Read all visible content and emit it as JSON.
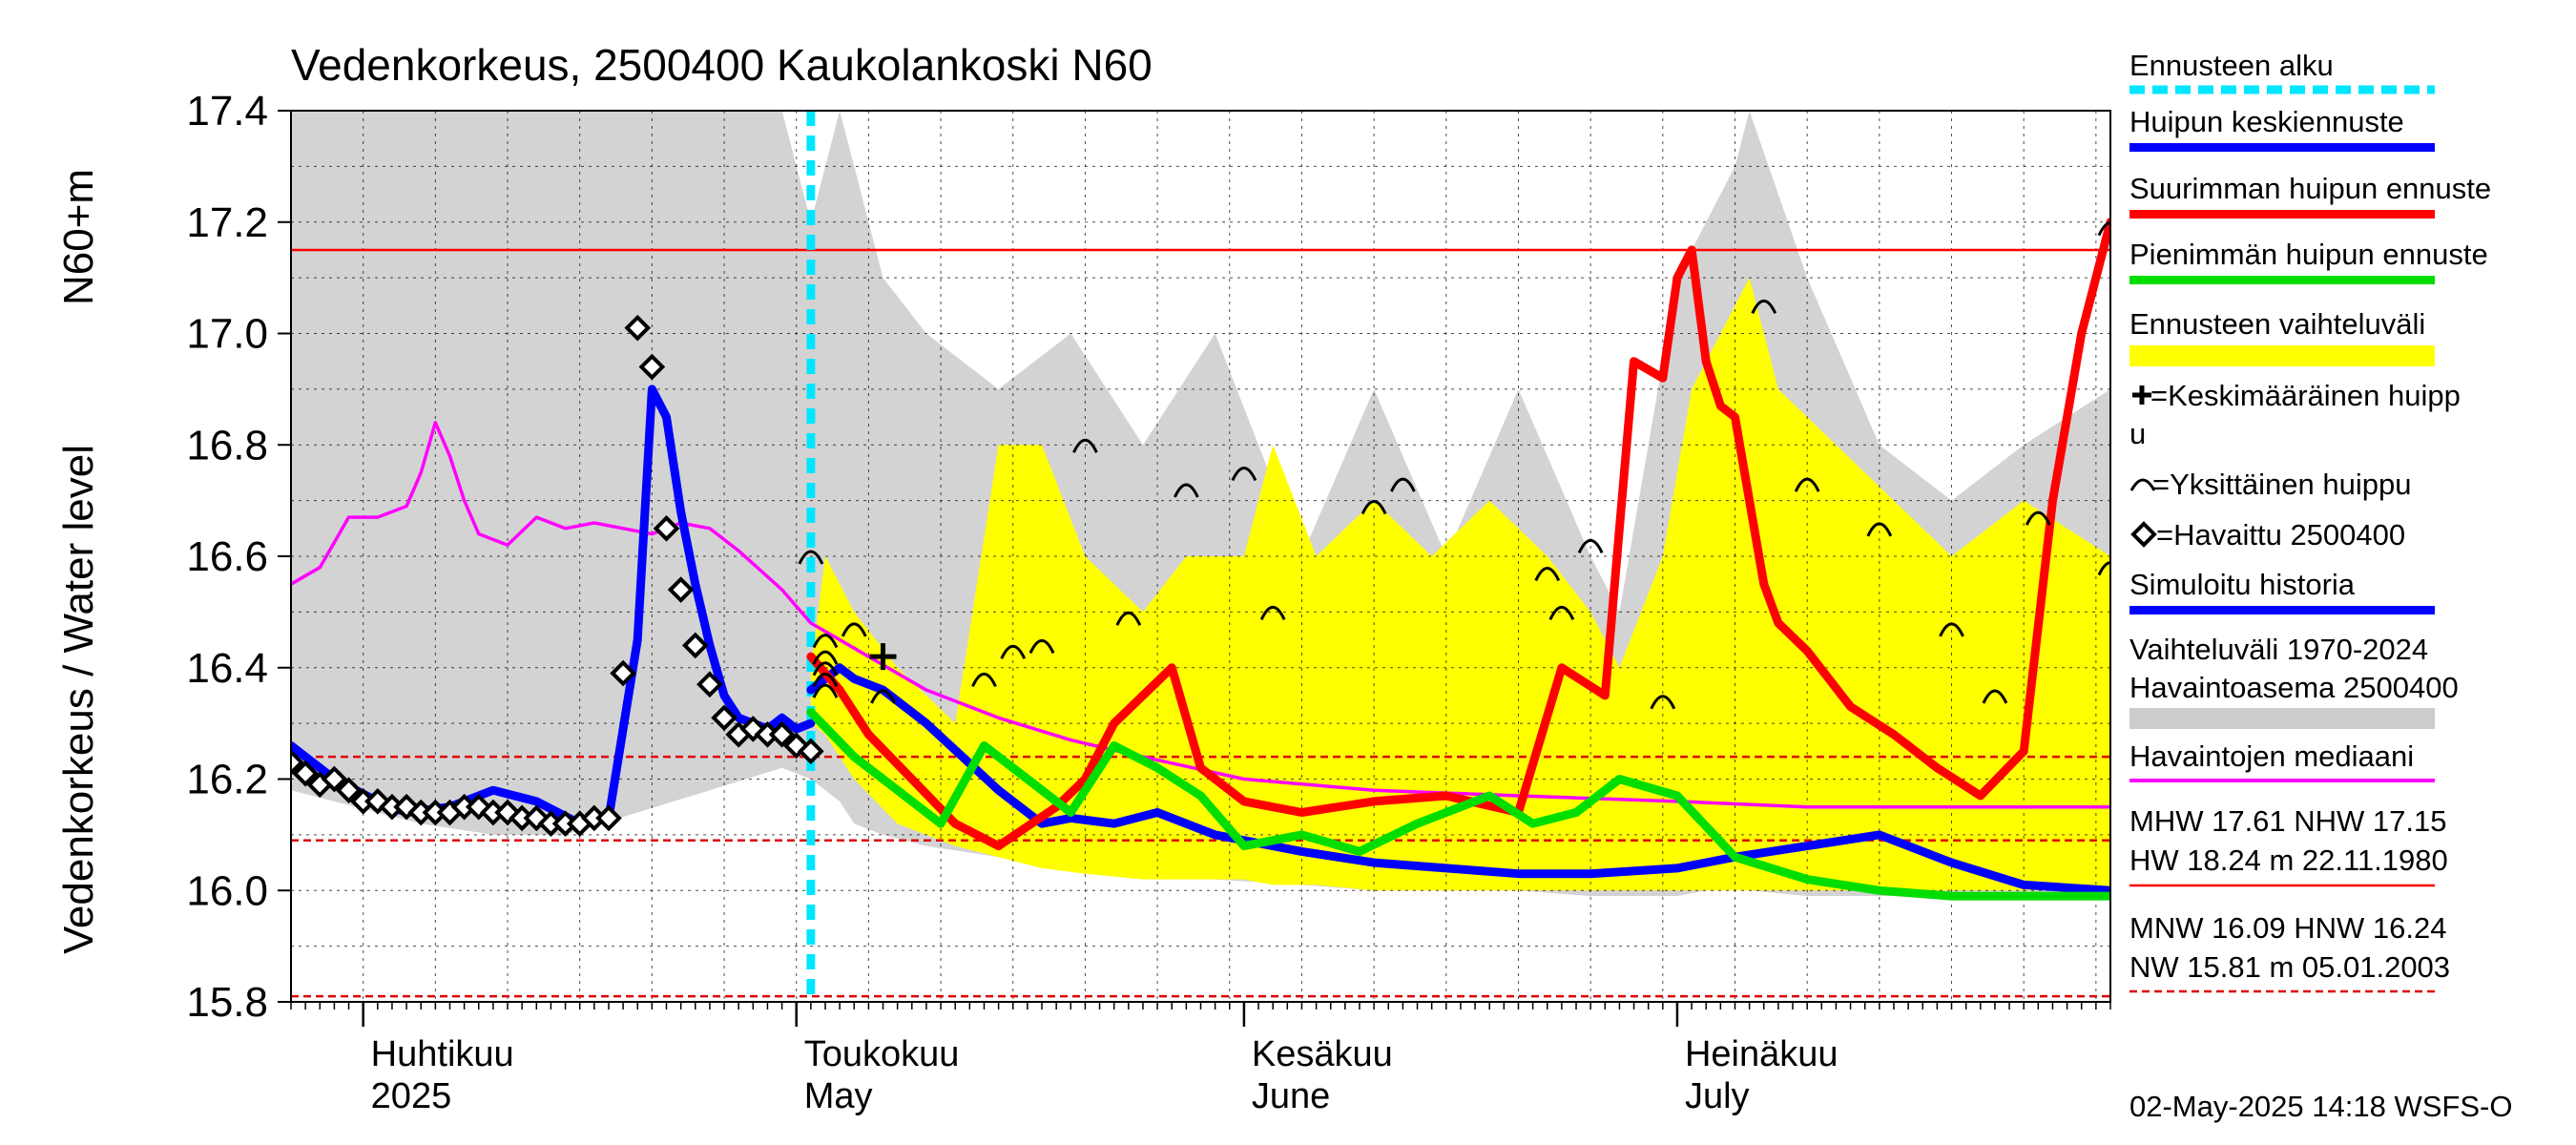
{
  "chart_data": {
    "type": "line",
    "title": "Vedenkorkeus, 2500400 Kaukolankoski N60",
    "ylabel": "Vedenkorkeus / Water level",
    "yunit": "N60+m",
    "ylim": [
      15.8,
      17.4
    ],
    "y_ticks": [
      "15.8",
      "16.0",
      "16.2",
      "16.4",
      "16.6",
      "16.8",
      "17.0",
      "17.2",
      "17.4"
    ],
    "xlim": [
      "2025-03-27",
      "2025-07-31"
    ],
    "grid": true,
    "legend_placement": "right",
    "month_labels": [
      {
        "date": "2025-04-01",
        "fi": "Huhtikuu",
        "en": "2025"
      },
      {
        "date": "2025-05-01",
        "fi": "Toukokuu",
        "en": "May"
      },
      {
        "date": "2025-06-01",
        "fi": "Kesäkuu",
        "en": "June"
      },
      {
        "date": "2025-07-01",
        "fi": "Heinäkuu",
        "en": "July"
      }
    ],
    "forecast_start": "2025-05-02",
    "reference_lines": [
      {
        "name": "NHW",
        "value": 17.15,
        "style": "solid",
        "color": "#ff0000"
      },
      {
        "name": "HNW",
        "value": 16.24,
        "style": "dashed",
        "color": "#dd0000"
      },
      {
        "name": "MNW",
        "value": 16.09,
        "style": "dashed",
        "color": "#dd0000"
      },
      {
        "name": "NW",
        "value": 15.81,
        "style": "dashed",
        "color": "#dd0000"
      }
    ],
    "historical_range": {
      "x": [
        "2025-03-27",
        "2025-04-05",
        "2025-04-10",
        "2025-04-15",
        "2025-04-20",
        "2025-04-25",
        "2025-04-30",
        "2025-05-02",
        "2025-05-04",
        "2025-05-05",
        "2025-05-07",
        "2025-05-10",
        "2025-05-15",
        "2025-05-20",
        "2025-05-25",
        "2025-05-30",
        "2025-06-05",
        "2025-06-10",
        "2025-06-15",
        "2025-06-20",
        "2025-06-25",
        "2025-06-27",
        "2025-07-01",
        "2025-07-05",
        "2025-07-06",
        "2025-07-10",
        "2025-07-15",
        "2025-07-20",
        "2025-07-25",
        "2025-07-31"
      ],
      "upper": [
        17.4,
        17.4,
        17.4,
        17.4,
        17.4,
        17.4,
        17.4,
        17.2,
        17.4,
        17.3,
        17.1,
        17.0,
        16.9,
        17.0,
        16.8,
        17.0,
        16.6,
        16.9,
        16.6,
        16.9,
        16.6,
        16.5,
        17.1,
        17.3,
        17.4,
        17.1,
        16.8,
        16.7,
        16.8,
        16.9
      ],
      "lower": [
        16.18,
        16.12,
        16.1,
        16.1,
        16.14,
        16.18,
        16.22,
        16.2,
        16.16,
        16.12,
        16.1,
        16.08,
        16.06,
        16.04,
        16.03,
        16.02,
        16.01,
        16.0,
        16.0,
        16.0,
        15.99,
        15.99,
        15.99,
        16.01,
        16.0,
        15.99,
        15.99,
        15.99,
        15.99,
        15.99
      ]
    },
    "forecast_range": {
      "x": [
        "2025-05-02",
        "2025-05-03",
        "2025-05-05",
        "2025-05-08",
        "2025-05-12",
        "2025-05-15",
        "2025-05-18",
        "2025-05-21",
        "2025-05-25",
        "2025-05-28",
        "2025-06-01",
        "2025-06-03",
        "2025-06-06",
        "2025-06-10",
        "2025-06-14",
        "2025-06-18",
        "2025-06-22",
        "2025-06-25",
        "2025-06-27",
        "2025-06-30",
        "2025-07-02",
        "2025-07-04",
        "2025-07-06",
        "2025-07-08",
        "2025-07-12",
        "2025-07-16",
        "2025-07-20",
        "2025-07-25",
        "2025-07-31"
      ],
      "upper": [
        16.4,
        16.6,
        16.5,
        16.4,
        16.3,
        16.8,
        16.8,
        16.6,
        16.5,
        16.6,
        16.6,
        16.8,
        16.6,
        16.7,
        16.6,
        16.7,
        16.6,
        16.5,
        16.4,
        16.6,
        16.9,
        17.0,
        17.1,
        16.9,
        16.8,
        16.7,
        16.6,
        16.7,
        16.6
      ],
      "lower": [
        16.3,
        16.28,
        16.2,
        16.12,
        16.08,
        16.06,
        16.04,
        16.03,
        16.02,
        16.02,
        16.02,
        16.01,
        16.01,
        16.0,
        16.0,
        16.0,
        16.0,
        16.0,
        16.0,
        16.0,
        16.0,
        16.0,
        16.0,
        16.0,
        16.0,
        16.0,
        16.0,
        16.0,
        16.0
      ]
    },
    "series": [
      {
        "name": "Havaintojen mediaani",
        "color": "#ff00ff",
        "x": [
          "2025-03-27",
          "2025-03-29",
          "2025-03-31",
          "2025-04-02",
          "2025-04-04",
          "2025-04-05",
          "2025-04-06",
          "2025-04-07",
          "2025-04-08",
          "2025-04-09",
          "2025-04-11",
          "2025-04-13",
          "2025-04-15",
          "2025-04-17",
          "2025-04-19",
          "2025-04-21",
          "2025-04-23",
          "2025-04-25",
          "2025-04-27",
          "2025-04-30",
          "2025-05-02",
          "2025-05-06",
          "2025-05-10",
          "2025-05-15",
          "2025-05-20",
          "2025-05-25",
          "2025-06-01",
          "2025-06-10",
          "2025-06-20",
          "2025-07-01",
          "2025-07-10",
          "2025-07-20",
          "2025-07-31"
        ],
        "values": [
          16.55,
          16.58,
          16.67,
          16.67,
          16.69,
          16.75,
          16.84,
          16.78,
          16.7,
          16.64,
          16.62,
          16.67,
          16.65,
          16.66,
          16.65,
          16.64,
          16.66,
          16.65,
          16.61,
          16.54,
          16.48,
          16.42,
          16.36,
          16.31,
          16.27,
          16.24,
          16.2,
          16.18,
          16.17,
          16.16,
          16.15,
          16.15,
          16.15
        ]
      },
      {
        "name": "Simuloitu historia",
        "color": "#0000ff",
        "x": [
          "2025-03-27",
          "2025-03-30",
          "2025-04-02",
          "2025-04-04",
          "2025-04-07",
          "2025-04-10",
          "2025-04-13",
          "2025-04-16",
          "2025-04-18",
          "2025-04-20",
          "2025-04-21",
          "2025-04-22",
          "2025-04-23",
          "2025-04-24",
          "2025-04-25",
          "2025-04-26",
          "2025-04-27",
          "2025-04-28",
          "2025-04-29",
          "2025-04-30",
          "2025-05-01",
          "2025-05-02"
        ],
        "values": [
          16.26,
          16.2,
          16.16,
          16.14,
          16.15,
          16.18,
          16.16,
          16.12,
          16.13,
          16.45,
          16.9,
          16.85,
          16.68,
          16.55,
          16.44,
          16.35,
          16.31,
          16.3,
          16.29,
          16.31,
          16.29,
          16.3
        ]
      },
      {
        "name": "Huipun keskiennuste",
        "color": "#0000ff",
        "x": [
          "2025-05-02",
          "2025-05-04",
          "2025-05-05",
          "2025-05-07",
          "2025-05-10",
          "2025-05-15",
          "2025-05-18",
          "2025-05-20",
          "2025-05-23",
          "2025-05-26",
          "2025-05-30",
          "2025-06-05",
          "2025-06-10",
          "2025-06-15",
          "2025-06-20",
          "2025-06-25",
          "2025-07-01",
          "2025-07-05",
          "2025-07-10",
          "2025-07-15",
          "2025-07-20",
          "2025-07-25",
          "2025-07-31"
        ],
        "values": [
          16.36,
          16.4,
          16.38,
          16.36,
          16.3,
          16.18,
          16.12,
          16.13,
          16.12,
          16.14,
          16.1,
          16.07,
          16.05,
          16.04,
          16.03,
          16.03,
          16.04,
          16.06,
          16.08,
          16.1,
          16.05,
          16.01,
          16.0
        ]
      },
      {
        "name": "Suurimman huipun ennuste",
        "color": "#ff0000",
        "x": [
          "2025-05-02",
          "2025-05-04",
          "2025-05-06",
          "2025-05-09",
          "2025-05-12",
          "2025-05-15",
          "2025-05-19",
          "2025-05-21",
          "2025-05-23",
          "2025-05-27",
          "2025-05-29",
          "2025-06-01",
          "2025-06-05",
          "2025-06-10",
          "2025-06-15",
          "2025-06-20",
          "2025-06-23",
          "2025-06-26",
          "2025-06-28",
          "2025-06-30",
          "2025-07-01",
          "2025-07-02",
          "2025-07-03",
          "2025-07-04",
          "2025-07-05",
          "2025-07-06",
          "2025-07-07",
          "2025-07-08",
          "2025-07-10",
          "2025-07-13",
          "2025-07-16",
          "2025-07-19",
          "2025-07-22",
          "2025-07-25",
          "2025-07-27",
          "2025-07-29",
          "2025-07-31"
        ],
        "values": [
          16.42,
          16.36,
          16.28,
          16.2,
          16.12,
          16.08,
          16.15,
          16.2,
          16.3,
          16.4,
          16.22,
          16.16,
          16.14,
          16.16,
          16.17,
          16.14,
          16.4,
          16.35,
          16.95,
          16.92,
          17.1,
          17.15,
          16.95,
          16.87,
          16.85,
          16.7,
          16.55,
          16.48,
          16.43,
          16.33,
          16.28,
          16.22,
          16.17,
          16.25,
          16.7,
          17.0,
          17.2
        ]
      },
      {
        "name": "Pienimmän huipun ennuste",
        "color": "#00dd00",
        "x": [
          "2025-05-02",
          "2025-05-05",
          "2025-05-08",
          "2025-05-11",
          "2025-05-14",
          "2025-05-17",
          "2025-05-20",
          "2025-05-23",
          "2025-05-26",
          "2025-05-29",
          "2025-06-01",
          "2025-06-05",
          "2025-06-09",
          "2025-06-13",
          "2025-06-18",
          "2025-06-21",
          "2025-06-24",
          "2025-06-27",
          "2025-07-01",
          "2025-07-05",
          "2025-07-10",
          "2025-07-15",
          "2025-07-20",
          "2025-07-25",
          "2025-07-31"
        ],
        "values": [
          16.32,
          16.24,
          16.18,
          16.12,
          16.26,
          16.2,
          16.14,
          16.26,
          16.22,
          16.17,
          16.08,
          16.1,
          16.07,
          16.12,
          16.17,
          16.12,
          16.14,
          16.2,
          16.17,
          16.06,
          16.02,
          16.0,
          15.99,
          15.99,
          15.99
        ]
      }
    ],
    "observed": {
      "name": "Havaittu 2500400",
      "marker": "diamond",
      "x": [
        "2025-03-27",
        "2025-03-28",
        "2025-03-29",
        "2025-03-30",
        "2025-03-31",
        "2025-04-01",
        "2025-04-02",
        "2025-04-03",
        "2025-04-04",
        "2025-04-05",
        "2025-04-06",
        "2025-04-07",
        "2025-04-08",
        "2025-04-09",
        "2025-04-10",
        "2025-04-11",
        "2025-04-12",
        "2025-04-13",
        "2025-04-14",
        "2025-04-15",
        "2025-04-16",
        "2025-04-17",
        "2025-04-18",
        "2025-04-19",
        "2025-04-20",
        "2025-04-21",
        "2025-04-22",
        "2025-04-23",
        "2025-04-24",
        "2025-04-25",
        "2025-04-26",
        "2025-04-27",
        "2025-04-28",
        "2025-04-29",
        "2025-04-30",
        "2025-05-01",
        "2025-05-02"
      ],
      "values": [
        16.23,
        16.21,
        16.19,
        16.2,
        16.18,
        16.16,
        16.16,
        16.15,
        16.15,
        16.14,
        16.14,
        16.14,
        16.15,
        16.15,
        16.14,
        16.14,
        16.13,
        16.13,
        16.12,
        16.12,
        16.12,
        16.13,
        16.13,
        16.39,
        17.01,
        16.94,
        16.65,
        16.54,
        16.44,
        16.37,
        16.31,
        16.28,
        16.29,
        16.28,
        16.28,
        16.26,
        16.25
      ]
    },
    "individual_peaks": {
      "x": [
        "2025-05-02",
        "2025-05-03",
        "2025-05-03",
        "2025-05-03",
        "2025-05-03",
        "2025-05-03",
        "2025-05-05",
        "2025-05-07",
        "2025-05-14",
        "2025-05-16",
        "2025-05-18",
        "2025-05-21",
        "2025-05-24",
        "2025-05-28",
        "2025-06-01",
        "2025-06-03",
        "2025-06-10",
        "2025-06-12",
        "2025-06-22",
        "2025-06-23",
        "2025-06-25",
        "2025-06-30",
        "2025-07-07",
        "2025-07-10",
        "2025-07-15",
        "2025-07-20",
        "2025-07-23",
        "2025-07-26",
        "2025-07-31",
        "2025-07-31"
      ],
      "values": [
        16.6,
        16.45,
        16.42,
        16.4,
        16.38,
        16.36,
        16.47,
        16.35,
        16.38,
        16.43,
        16.44,
        16.8,
        16.49,
        16.72,
        16.75,
        16.5,
        16.69,
        16.73,
        16.57,
        16.5,
        16.62,
        16.34,
        17.05,
        16.73,
        16.65,
        16.47,
        16.35,
        16.67,
        16.58,
        17.19
      ]
    },
    "mean_peak": {
      "name": "Keskimääräinen huippu",
      "x": "2025-05-07",
      "value": 16.42
    },
    "legend": [
      {
        "label": "Ennusteen alku",
        "color": "#00e6ff",
        "style": "dashed"
      },
      {
        "label": "Huipun keskiennuste",
        "color": "#0000ff",
        "style": "line"
      },
      {
        "label": "Suurimman huipun ennuste",
        "color": "#ff0000",
        "style": "line"
      },
      {
        "label": "Pienimmän huipun ennuste",
        "color": "#00dd00",
        "style": "line"
      },
      {
        "label": "Ennusteen vaihteluväli",
        "color": "#ffff00",
        "style": "band"
      },
      {
        "label_line1": "=Keskimääräinen huipp",
        "label_line2": "u",
        "style": "plus"
      },
      {
        "label": "=Yksittäinen huippu",
        "style": "arc"
      },
      {
        "label": "=Havaittu 2500400",
        "style": "diamond"
      },
      {
        "label": "Simuloitu historia",
        "color": "#0000ff",
        "style": "line"
      },
      {
        "label_line1": "Vaihteluväli 1970-2024",
        "label_line2": " Havaintoasema 2500400",
        "color": "#cccccc",
        "style": "band"
      },
      {
        "label": "Havaintojen mediaani",
        "color": "#ff00ff",
        "style": "thin"
      }
    ],
    "stats": {
      "line1": "MHW  17.61 NHW  17.15",
      "line2": "HW  18.24 m 22.11.1980",
      "line3": "MNW  16.09 HNW  16.24",
      "line4": "NW  15.81 m 05.01.2003"
    },
    "footer": "02-May-2025 14:18 WSFS-O"
  }
}
